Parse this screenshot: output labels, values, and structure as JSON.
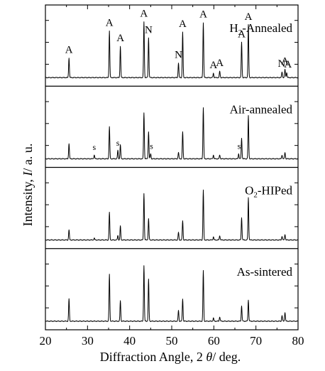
{
  "chart_data": {
    "type": "line",
    "xlabel": "Diffraction Angle, 2 θ/ deg.",
    "ylabel": "Intensity, I/ a. u.",
    "xlim": [
      20,
      80
    ],
    "x_ticks": [
      20,
      30,
      40,
      50,
      60,
      70,
      80
    ],
    "grid": false,
    "legend": "none",
    "panels": [
      {
        "name": "H2-Annealed",
        "label_main": "H",
        "label_sub": "2",
        "label_rest": "-Annealed",
        "peaks": [
          [
            25.6,
            0.31
          ],
          [
            35.2,
            0.73
          ],
          [
            37.8,
            0.49
          ],
          [
            43.4,
            0.87
          ],
          [
            44.5,
            0.62
          ],
          [
            51.6,
            0.23
          ],
          [
            52.6,
            0.71
          ],
          [
            57.5,
            0.86
          ],
          [
            59.9,
            0.07
          ],
          [
            61.4,
            0.1
          ],
          [
            66.6,
            0.55
          ],
          [
            68.2,
            0.82
          ],
          [
            76.2,
            0.09
          ],
          [
            76.9,
            0.13
          ],
          [
            77.3,
            0.08
          ]
        ],
        "annotations": [
          {
            "text": "A",
            "x": 25.6
          },
          {
            "text": "A",
            "x": 35.2
          },
          {
            "text": "A",
            "x": 37.8
          },
          {
            "text": "A",
            "x": 43.4
          },
          {
            "text": "N",
            "x": 44.5
          },
          {
            "text": "N",
            "x": 51.6
          },
          {
            "text": "A",
            "x": 52.6
          },
          {
            "text": "A",
            "x": 57.5
          },
          {
            "text": "A",
            "x": 59.9
          },
          {
            "text": "A",
            "x": 61.4
          },
          {
            "text": "A",
            "x": 66.6
          },
          {
            "text": "A",
            "x": 68.2
          },
          {
            "text": "N",
            "x": 76.1
          },
          {
            "text": "A",
            "x": 76.9
          },
          {
            "text": "A",
            "x": 77.6
          }
        ]
      },
      {
        "name": "Air-annealed",
        "label_main": "Air-annealed",
        "label_sub": "",
        "label_rest": "",
        "peaks": [
          [
            25.6,
            0.24
          ],
          [
            31.6,
            0.06
          ],
          [
            35.2,
            0.5
          ],
          [
            37.2,
            0.13
          ],
          [
            37.8,
            0.22
          ],
          [
            43.4,
            0.72
          ],
          [
            44.5,
            0.42
          ],
          [
            45.0,
            0.08
          ],
          [
            51.6,
            0.1
          ],
          [
            52.6,
            0.42
          ],
          [
            57.5,
            0.8
          ],
          [
            59.9,
            0.06
          ],
          [
            61.4,
            0.06
          ],
          [
            65.9,
            0.08
          ],
          [
            66.6,
            0.32
          ],
          [
            68.2,
            0.67
          ],
          [
            76.2,
            0.06
          ],
          [
            76.9,
            0.1
          ]
        ],
        "annotations": [
          {
            "text": "s",
            "x": 31.6
          },
          {
            "text": "s",
            "x": 37.2
          },
          {
            "text": "s",
            "x": 45.2
          },
          {
            "text": "s",
            "x": 66.0
          }
        ]
      },
      {
        "name": "O2-HIPed",
        "label_main": "O",
        "label_sub": "2",
        "label_rest": "-HIPed",
        "peaks": [
          [
            25.6,
            0.16
          ],
          [
            31.6,
            0.03
          ],
          [
            35.2,
            0.43
          ],
          [
            37.2,
            0.07
          ],
          [
            37.8,
            0.22
          ],
          [
            43.4,
            0.73
          ],
          [
            44.5,
            0.33
          ],
          [
            51.6,
            0.12
          ],
          [
            52.6,
            0.3
          ],
          [
            57.5,
            0.78
          ],
          [
            59.9,
            0.05
          ],
          [
            61.4,
            0.07
          ],
          [
            66.6,
            0.35
          ],
          [
            68.2,
            0.66
          ],
          [
            76.2,
            0.06
          ],
          [
            76.9,
            0.09
          ]
        ],
        "annotations": []
      },
      {
        "name": "As-sintered",
        "label_main": "As-sintered",
        "label_sub": "",
        "label_rest": "",
        "peaks": [
          [
            25.6,
            0.35
          ],
          [
            35.2,
            0.73
          ],
          [
            37.8,
            0.32
          ],
          [
            43.4,
            0.87
          ],
          [
            44.5,
            0.65
          ],
          [
            51.6,
            0.17
          ],
          [
            52.6,
            0.35
          ],
          [
            57.5,
            0.79
          ],
          [
            59.9,
            0.05
          ],
          [
            61.4,
            0.07
          ],
          [
            66.6,
            0.24
          ],
          [
            68.2,
            0.33
          ],
          [
            76.2,
            0.09
          ],
          [
            76.9,
            0.14
          ]
        ],
        "annotations": []
      }
    ]
  },
  "labels": {
    "xlabel": "Diffraction Angle, 2 ",
    "xlabel_theta": "θ",
    "xlabel_rest": "/ deg.",
    "ylabel_main": "Intensity, ",
    "ylabel_italic": "I",
    "ylabel_rest": "/ a. u.",
    "ticks": [
      "20",
      "30",
      "40",
      "50",
      "60",
      "70",
      "80"
    ]
  }
}
